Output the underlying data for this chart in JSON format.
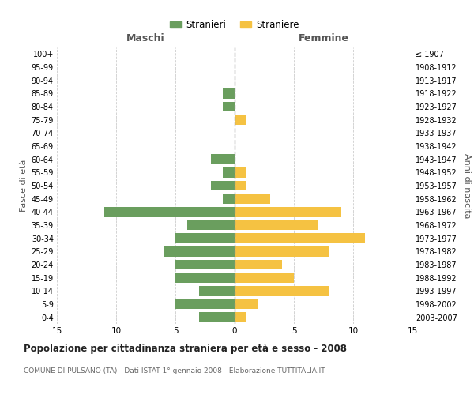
{
  "age_groups": [
    "0-4",
    "5-9",
    "10-14",
    "15-19",
    "20-24",
    "25-29",
    "30-34",
    "35-39",
    "40-44",
    "45-49",
    "50-54",
    "55-59",
    "60-64",
    "65-69",
    "70-74",
    "75-79",
    "80-84",
    "85-89",
    "90-94",
    "95-99",
    "100+"
  ],
  "birth_years": [
    "2003-2007",
    "1998-2002",
    "1993-1997",
    "1988-1992",
    "1983-1987",
    "1978-1982",
    "1973-1977",
    "1968-1972",
    "1963-1967",
    "1958-1962",
    "1953-1957",
    "1948-1952",
    "1943-1947",
    "1938-1942",
    "1933-1937",
    "1928-1932",
    "1923-1927",
    "1918-1922",
    "1913-1917",
    "1908-1912",
    "≤ 1907"
  ],
  "maschi": [
    3,
    5,
    3,
    5,
    5,
    6,
    5,
    4,
    11,
    1,
    2,
    1,
    2,
    0,
    0,
    0,
    1,
    1,
    0,
    0,
    0
  ],
  "femmine": [
    1,
    2,
    8,
    5,
    4,
    8,
    11,
    7,
    9,
    3,
    1,
    1,
    0,
    0,
    0,
    1,
    0,
    0,
    0,
    0,
    0
  ],
  "maschi_color": "#6a9e5e",
  "femmine_color": "#f5c242",
  "title": "Popolazione per cittadinanza straniera per età e sesso - 2008",
  "subtitle": "COMUNE DI PULSANO (TA) - Dati ISTAT 1° gennaio 2008 - Elaborazione TUTTITALIA.IT",
  "ylabel_left": "Fasce di età",
  "ylabel_right": "Anni di nascita",
  "xlabel_left": "Maschi",
  "xlabel_right": "Femmine",
  "legend_maschi": "Stranieri",
  "legend_femmine": "Straniere",
  "xlim": 15,
  "background_color": "#ffffff",
  "grid_color": "#cccccc"
}
